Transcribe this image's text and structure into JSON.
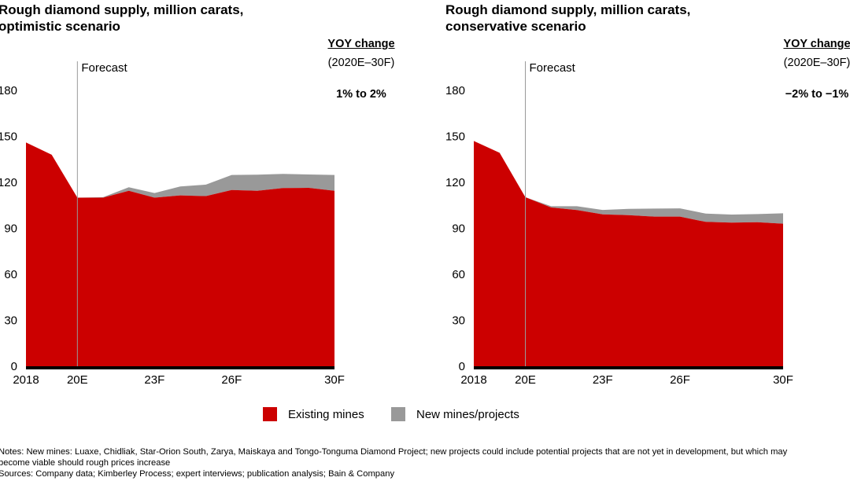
{
  "colors": {
    "existing": "#cc0000",
    "new": "#999999",
    "axis": "#000000"
  },
  "legend": [
    {
      "label": "Existing mines",
      "color": "#cc0000"
    },
    {
      "label": "New mines/projects",
      "color": "#999999"
    }
  ],
  "forecast_label": "Forecast",
  "notes": [
    "Notes: New mines: Luaxe, Chidliak, Star-Orion South, Zarya, Maiskaya and Tongo-Tonguma Diamond Project; new projects could include potential projects that are not yet in development, but which may",
    "become viable should rough prices increase",
    "Sources: Company data; Kimberley Process; expert interviews; publication analysis; Bain & Company"
  ],
  "chart_data": [
    {
      "type": "area",
      "title": "Rough diamond supply, million carats, optimistic scenario",
      "title_lines": [
        "Rough diamond supply, million carats,",
        "optimistic scenario"
      ],
      "yoy": {
        "heading": "YOY change",
        "period": "(2020E–30F)",
        "value": "1% to 2%"
      },
      "x": [
        2018,
        2019,
        2020,
        2021,
        2022,
        2023,
        2024,
        2025,
        2026,
        2027,
        2028,
        2029,
        2030
      ],
      "xticks": [
        "2018",
        "20E",
        "23F",
        "26F",
        "30F"
      ],
      "yticks": [
        "0",
        "30",
        "60",
        "90",
        "120",
        "150",
        "180"
      ],
      "ylim": [
        0,
        180
      ],
      "forecast_start": 2020,
      "series": [
        {
          "name": "Existing mines",
          "values": [
            146,
            138,
            110,
            110,
            114.5,
            110,
            111.5,
            111,
            115,
            114.5,
            116.3,
            116.4,
            114.5
          ]
        },
        {
          "name": "New mines/projects",
          "values": [
            0,
            0,
            0,
            0.3,
            2.3,
            3,
            5.8,
            7.5,
            9.8,
            10.5,
            9.2,
            8.7,
            10.3
          ]
        }
      ]
    },
    {
      "type": "area",
      "title": "Rough diamond supply, million carats, conservative scenario",
      "title_lines": [
        "Rough diamond supply, million carats,",
        "conservative scenario"
      ],
      "yoy": {
        "heading": "YOY change",
        "period": "(2020E–30F)",
        "value": "−2% to −1%"
      },
      "x": [
        2018,
        2019,
        2020,
        2021,
        2022,
        2023,
        2024,
        2025,
        2026,
        2027,
        2028,
        2029,
        2030
      ],
      "xticks": [
        "2018",
        "20E",
        "23F",
        "26F",
        "30F"
      ],
      "yticks": [
        "0",
        "30",
        "60",
        "90",
        "120",
        "150",
        "180"
      ],
      "ylim": [
        0,
        180
      ],
      "forecast_start": 2020,
      "series": [
        {
          "name": "Existing mines",
          "values": [
            147,
            139.3,
            110.3,
            103.6,
            101.9,
            99.1,
            98.6,
            97.6,
            97.6,
            94.2,
            93.7,
            94,
            93
          ]
        },
        {
          "name": "New mines/projects",
          "values": [
            0,
            0,
            0,
            0.8,
            2.5,
            2.9,
            4.1,
            5.3,
            5.4,
            5.4,
            5.3,
            5.3,
            6.8
          ]
        }
      ]
    }
  ]
}
